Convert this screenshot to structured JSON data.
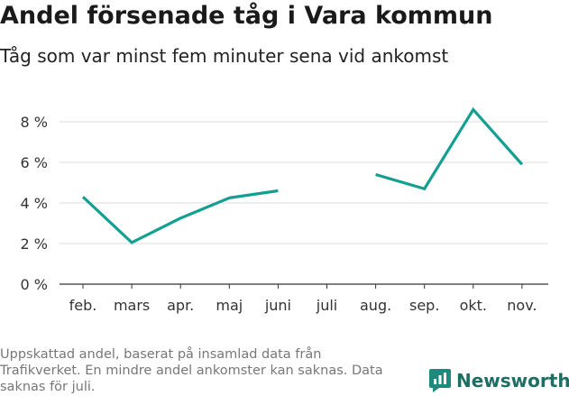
{
  "title": "Andel försenade tåg i Vara kommun",
  "subtitle": "Tåg som var minst fem minuter sena vid ankomst",
  "footnote": "Uppskattad andel, baserat på insamlad data från Trafikverket. En mindre andel ankomster kan saknas. Data saknas för juli.",
  "brand": "Newsworthy",
  "chart_data": {
    "type": "line",
    "title": "Andel försenade tåg i Vara kommun",
    "subtitle": "Tåg som var minst fem minuter sena vid ankomst",
    "categories": [
      "feb.",
      "mars",
      "apr.",
      "maj",
      "juni",
      "juli",
      "aug.",
      "sep.",
      "okt.",
      "nov."
    ],
    "series": [
      {
        "values": [
          4.3,
          2.05,
          3.25,
          4.25,
          4.6,
          null,
          5.4,
          4.7,
          8.6,
          5.9
        ]
      }
    ],
    "ytick_labels": [
      "0 %",
      "2 %",
      "4 %",
      "6 %",
      "8 %"
    ],
    "ylim": [
      0,
      8.8
    ],
    "grid": true,
    "line_color": "#14a090"
  }
}
